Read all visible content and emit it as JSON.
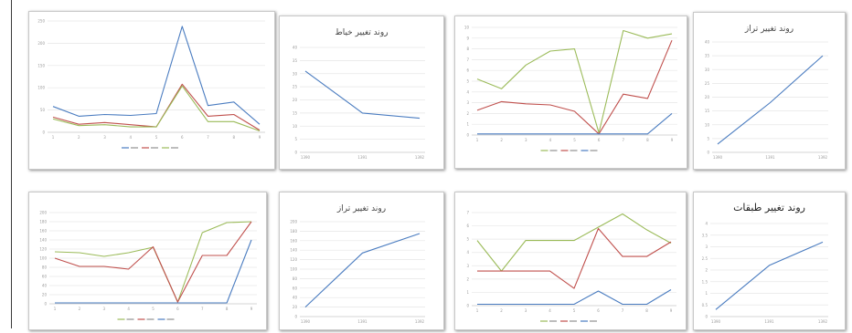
{
  "chart_data": [
    {
      "type": "line",
      "title": "",
      "categories": [
        "1",
        "2",
        "3",
        "4",
        "5",
        "6",
        "7",
        "8",
        "9"
      ],
      "ylim": [
        0,
        250
      ],
      "yticks": [
        "0",
        "50",
        "100",
        "150",
        "200",
        "250"
      ],
      "series": [
        {
          "color": "#4a7cc0",
          "values": [
            58,
            36,
            40,
            38,
            42,
            238,
            60,
            68,
            18
          ]
        },
        {
          "color": "#c0504d",
          "values": [
            34,
            18,
            22,
            17,
            12,
            108,
            36,
            40,
            5
          ]
        },
        {
          "color": "#9bbb59",
          "values": [
            30,
            15,
            17,
            12,
            12,
            104,
            24,
            24,
            3
          ]
        }
      ],
      "legend": "bottom"
    },
    {
      "type": "line",
      "title": "روند تغییر خیاط",
      "categories": [
        "1390",
        "1391",
        "1392"
      ],
      "ylim": [
        0,
        40
      ],
      "yticks": [
        "0",
        "5",
        "10",
        "15",
        "20",
        "25",
        "30",
        "35",
        "40"
      ],
      "series": [
        {
          "color": "#4a7cc0",
          "values": [
            31,
            15,
            13
          ]
        }
      ]
    },
    {
      "type": "line",
      "title": "",
      "categories": [
        "1",
        "2",
        "3",
        "4",
        "5",
        "6",
        "7",
        "8",
        "9"
      ],
      "ylim": [
        0,
        10
      ],
      "yticks": [
        "0",
        "1",
        "2",
        "3",
        "4",
        "5",
        "6",
        "7",
        "8",
        "9",
        "10"
      ],
      "series": [
        {
          "color": "#9bbb59",
          "values": [
            5.2,
            4.3,
            6.5,
            7.8,
            8.0,
            0.2,
            9.7,
            9.0,
            9.4
          ]
        },
        {
          "color": "#c0504d",
          "values": [
            2.3,
            3.1,
            2.9,
            2.8,
            2.2,
            0.1,
            3.8,
            3.4,
            8.8
          ]
        },
        {
          "color": "#4a7cc0",
          "values": [
            0.1,
            0.1,
            0.1,
            0.1,
            0.1,
            0.1,
            0.1,
            0.1,
            2.0
          ]
        }
      ],
      "legend": "bottom"
    },
    {
      "type": "line",
      "title": "روند تغییر تراز",
      "categories": [
        "1390",
        "1391",
        "1392"
      ],
      "ylim": [
        0,
        40
      ],
      "yticks": [
        "0",
        "5",
        "10",
        "15",
        "20",
        "25",
        "30",
        "35",
        "40"
      ],
      "series": [
        {
          "color": "#4a7cc0",
          "values": [
            3,
            18,
            35
          ]
        }
      ]
    },
    {
      "type": "line",
      "title": "",
      "categories": [
        "1",
        "2",
        "3",
        "4",
        "5",
        "6",
        "7",
        "8",
        "9"
      ],
      "ylim": [
        0,
        200
      ],
      "yticks": [
        "0",
        "20",
        "40",
        "60",
        "80",
        "100",
        "120",
        "140",
        "160",
        "180",
        "200"
      ],
      "series": [
        {
          "color": "#9bbb59",
          "values": [
            114,
            112,
            104,
            112,
            124,
            4,
            156,
            178,
            180
          ]
        },
        {
          "color": "#c0504d",
          "values": [
            100,
            82,
            82,
            76,
            125,
            4,
            106,
            106,
            180
          ]
        },
        {
          "color": "#4a7cc0",
          "values": [
            2,
            2,
            2,
            2,
            2,
            2,
            2,
            2,
            140
          ]
        }
      ],
      "legend": "bottom"
    },
    {
      "type": "line",
      "title": "روند تغییر تراز",
      "categories": [
        "1390",
        "1391",
        "1392"
      ],
      "ylim": [
        0,
        200
      ],
      "yticks": [
        "0",
        "20",
        "40",
        "60",
        "80",
        "100",
        "120",
        "140",
        "160",
        "180",
        "200"
      ],
      "series": [
        {
          "color": "#4a7cc0",
          "values": [
            20,
            134,
            175
          ]
        }
      ]
    },
    {
      "type": "line",
      "title": "",
      "categories": [
        "1",
        "2",
        "3",
        "4",
        "5",
        "6",
        "7",
        "8",
        "9"
      ],
      "ylim": [
        0,
        7
      ],
      "yticks": [
        "0",
        "1",
        "2",
        "3",
        "4",
        "5",
        "6",
        "7"
      ],
      "series": [
        {
          "color": "#9bbb59",
          "values": [
            4.9,
            2.6,
            4.9,
            4.9,
            4.9,
            5.9,
            6.9,
            5.7,
            4.7
          ]
        },
        {
          "color": "#c0504d",
          "values": [
            2.6,
            2.6,
            2.6,
            2.6,
            1.3,
            5.8,
            3.7,
            3.7,
            4.8
          ]
        },
        {
          "color": "#4a7cc0",
          "values": [
            0.1,
            0.1,
            0.1,
            0.1,
            0.1,
            1.1,
            0.1,
            0.1,
            1.2
          ]
        }
      ],
      "legend": "bottom"
    },
    {
      "type": "line",
      "title": "روند تغییر طبقات",
      "categories": [
        "1390",
        "1391",
        "1392"
      ],
      "ylim": [
        0,
        4
      ],
      "yticks": [
        "0",
        "0.5",
        "1",
        "1.5",
        "2",
        "2.5",
        "3",
        "3.5",
        "4"
      ],
      "series": [
        {
          "color": "#4a7cc0",
          "values": [
            0.3,
            2.2,
            3.2
          ]
        }
      ]
    }
  ]
}
